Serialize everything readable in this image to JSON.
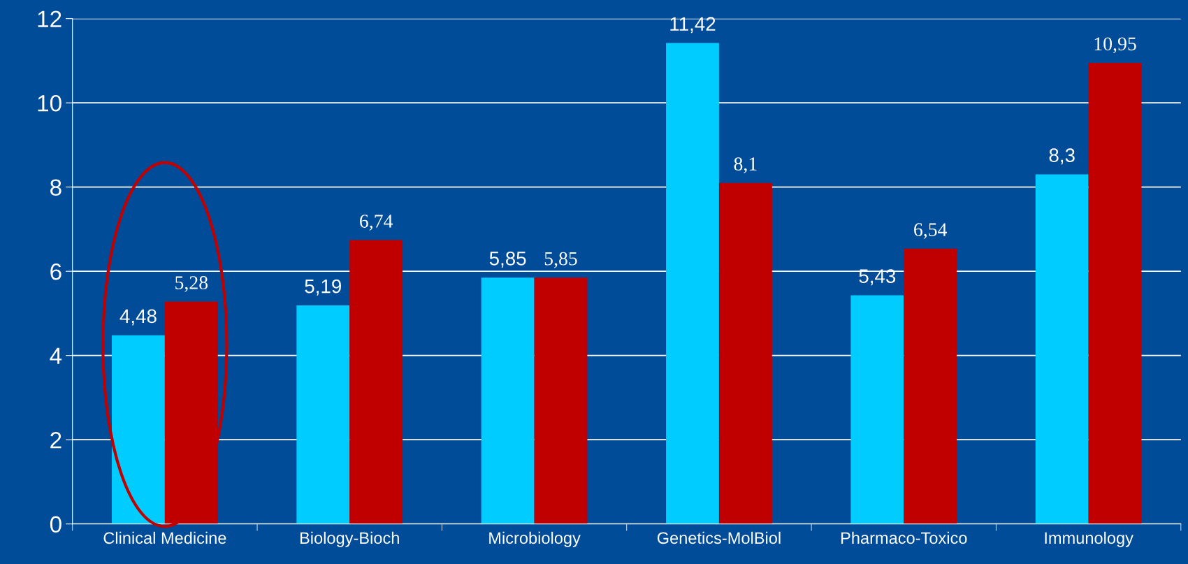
{
  "chart_data": {
    "type": "bar",
    "categories": [
      "Clinical Medicine",
      "Biology-Bioch",
      "Microbiology",
      "Genetics-MolBiol",
      "Pharmaco-Toxico",
      "Immunology"
    ],
    "series": [
      {
        "color": "#00ccff",
        "values": [
          4.48,
          5.19,
          5.85,
          11.42,
          5.43,
          8.3
        ],
        "value_labels": [
          "4,48",
          "5,19",
          "5,85",
          "11,42",
          "5,43",
          "8,3"
        ]
      },
      {
        "color": "#c00000",
        "values": [
          5.28,
          6.74,
          5.85,
          8.1,
          6.54,
          10.95
        ],
        "value_labels": [
          "5,28",
          "6,74",
          "5,85",
          "8,1",
          "6,54",
          "10,95"
        ]
      }
    ],
    "ylim": [
      0,
      12
    ],
    "yticks": [
      0,
      2,
      4,
      6,
      8,
      10,
      12
    ],
    "grid": "y",
    "legend": false
  }
}
